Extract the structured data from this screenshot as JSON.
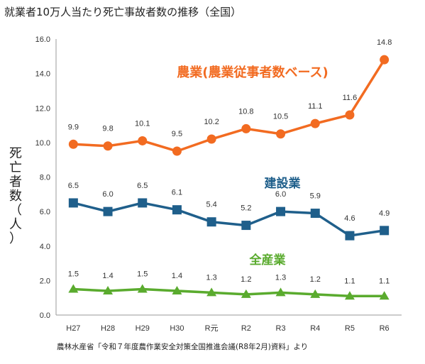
{
  "title": "就業者10万人当たり死亡事故者数の推移（全国）",
  "source": "農林水産省「令和７年度農作業安全対策全国推進会議(R8年2月)資料」より",
  "chart_data": {
    "type": "line",
    "categories": [
      "H27",
      "H28",
      "H29",
      "H30",
      "R元",
      "R2",
      "R3",
      "R4",
      "R5",
      "R6"
    ],
    "ylabel": "死亡者数（人）",
    "ylim": [
      0,
      16
    ],
    "yticks": [
      "0.0",
      "2.0",
      "4.0",
      "6.0",
      "8.0",
      "10.0",
      "12.0",
      "14.0",
      "16.0"
    ],
    "grid": false,
    "series": [
      {
        "name": "農業(農業従事者数ベース)",
        "color": "#f26b21",
        "marker": "circle",
        "values": [
          9.9,
          9.8,
          10.1,
          9.5,
          10.2,
          10.8,
          10.5,
          11.1,
          11.6,
          14.8
        ],
        "labels": [
          "9.9",
          "9.8",
          "10.1",
          "9.5",
          "10.2",
          "10.8",
          "10.5",
          "11.1",
          "11.6",
          "14.8"
        ]
      },
      {
        "name": "建設業",
        "color": "#1f5f8b",
        "marker": "square",
        "values": [
          6.5,
          6.0,
          6.5,
          6.1,
          5.4,
          5.2,
          6.0,
          5.9,
          4.6,
          4.9
        ],
        "labels": [
          "6.5",
          "6.0",
          "6.5",
          "6.1",
          "5.4",
          "5.2",
          "6.0",
          "5.9",
          "4.6",
          "4.9"
        ]
      },
      {
        "name": "全産業",
        "color": "#5aab2e",
        "marker": "triangle",
        "values": [
          1.5,
          1.4,
          1.5,
          1.4,
          1.3,
          1.2,
          1.3,
          1.2,
          1.1,
          1.1
        ],
        "labels": [
          "1.5",
          "1.4",
          "1.5",
          "1.4",
          "1.3",
          "1.2",
          "1.3",
          "1.2",
          "1.1",
          "1.1"
        ]
      }
    ]
  }
}
